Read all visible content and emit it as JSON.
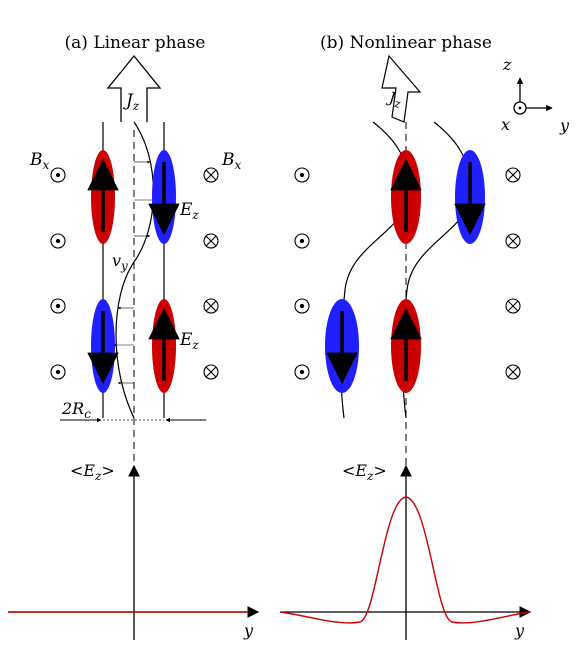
{
  "panel_a": {
    "title": "(a) Linear phase",
    "current_label": "J",
    "current_sub": "z",
    "field_label": "B",
    "field_sub": "x",
    "ez_label": "E",
    "ez_sub": "z",
    "vy_label": "v",
    "vy_sub": "y",
    "radius_label": "2R",
    "radius_sub": "c",
    "avg_label": "<E",
    "avg_sub": "z",
    "avg_close": ">",
    "axis_label": "y"
  },
  "panel_b": {
    "title": "(b) Nonlinear phase",
    "current_label": "J",
    "current_sub": "z",
    "avg_label": "<E",
    "avg_sub": "z",
    "avg_close": ">",
    "axis_label": "y"
  },
  "axes_legend": {
    "z": "z",
    "x": "x",
    "y": "y"
  },
  "colors": {
    "red": "#cc0000",
    "blue": "#1f1fff",
    "profile": "#cc0000"
  }
}
